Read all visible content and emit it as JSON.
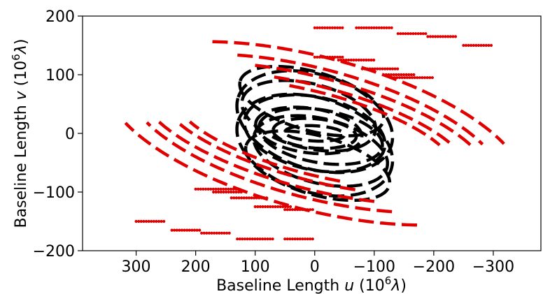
{
  "chart_data": {
    "type": "scatter",
    "title": "",
    "xlabel": {
      "prefix": "Baseline Length ",
      "var": "u",
      "unit_open": " (10",
      "exp": "6",
      "unit_sym": "λ",
      "unit_close": ")"
    },
    "ylabel": {
      "prefix": "Baseline Length ",
      "var": "v",
      "unit_open": " (10",
      "exp": "6",
      "unit_sym": "λ",
      "unit_close": ")"
    },
    "xlim": [
      390,
      -380
    ],
    "ylim": [
      -200,
      200
    ],
    "x_inverted": true,
    "x_ticks": [
      300,
      200,
      100,
      0,
      -100,
      -200,
      -300
    ],
    "x_tick_labels": [
      "300",
      "200",
      "100",
      "0",
      "−100",
      "−200",
      "−300"
    ],
    "y_ticks": [
      -200,
      -100,
      0,
      100,
      200
    ],
    "y_tick_labels": [
      "−200",
      "−100",
      "0",
      "100",
      "200"
    ],
    "grid": false,
    "legend": "none",
    "series": [
      {
        "color": "#000000",
        "style": "dashed",
        "description_tracks": "inner elliptical uv tracks",
        "tracks": [
          {
            "cx": 0,
            "cy": 0,
            "a": 50,
            "b": 13,
            "tilt": 3
          },
          {
            "cx": 0,
            "cy": 0,
            "a": 70,
            "b": 25,
            "tilt": 5
          },
          {
            "cx": 10,
            "cy": 5,
            "a": 90,
            "b": 38,
            "tilt": 8
          },
          {
            "cx": -10,
            "cy": -5,
            "a": 105,
            "b": 45,
            "tilt": 10
          },
          {
            "cx": 0,
            "cy": 0,
            "a": 120,
            "b": 62,
            "tilt": 12
          },
          {
            "cx": 10,
            "cy": 30,
            "a": 115,
            "b": 55,
            "tilt": 14
          },
          {
            "cx": -10,
            "cy": -30,
            "a": 115,
            "b": 55,
            "tilt": 14
          },
          {
            "cx": 5,
            "cy": 55,
            "a": 125,
            "b": 50,
            "tilt": 16
          },
          {
            "cx": -5,
            "cy": -55,
            "a": 125,
            "b": 50,
            "tilt": 16
          },
          {
            "cx": 0,
            "cy": 20,
            "a": 135,
            "b": 80,
            "tilt": 18
          },
          {
            "cx": 0,
            "cy": -20,
            "a": 135,
            "b": 80,
            "tilt": 18
          }
        ]
      },
      {
        "color": "#e00000",
        "style": "dashed",
        "description_tracks": "outer crescent uv tracks",
        "tracks": [
          {
            "cx": 0,
            "cy": 0,
            "a": 360,
            "b": 130,
            "t0": 55,
            "t1": 150,
            "tilt": 15
          },
          {
            "cx": 0,
            "cy": 0,
            "a": 320,
            "b": 110,
            "t0": 60,
            "t1": 150,
            "tilt": 15
          },
          {
            "cx": 0,
            "cy": 0,
            "a": 300,
            "b": 95,
            "t0": 65,
            "t1": 150,
            "tilt": 15
          },
          {
            "cx": 0,
            "cy": 0,
            "a": 265,
            "b": 80,
            "t0": 70,
            "t1": 150,
            "tilt": 15
          },
          {
            "cx": 0,
            "cy": 0,
            "a": 240,
            "b": 70,
            "t0": 75,
            "t1": 150,
            "tilt": 15
          },
          {
            "cx": 0,
            "cy": 0,
            "a": 360,
            "b": 130,
            "t0": 235,
            "t1": 330,
            "tilt": 15
          },
          {
            "cx": 0,
            "cy": 0,
            "a": 320,
            "b": 110,
            "t0": 240,
            "t1": 330,
            "tilt": 15
          },
          {
            "cx": 0,
            "cy": 0,
            "a": 300,
            "b": 95,
            "t0": 245,
            "t1": 330,
            "tilt": 15
          },
          {
            "cx": 0,
            "cy": 0,
            "a": 265,
            "b": 80,
            "t0": 250,
            "t1": 330,
            "tilt": 15
          },
          {
            "cx": 0,
            "cy": 0,
            "a": 240,
            "b": 70,
            "t0": 255,
            "t1": 330,
            "tilt": 15
          }
        ],
        "dotted_rows": [
          {
            "y": 180,
            "x_from": 0,
            "x_to": -50
          },
          {
            "y": 180,
            "x_from": -70,
            "x_to": -130
          },
          {
            "y": 170,
            "x_from": -140,
            "x_to": -190
          },
          {
            "y": 165,
            "x_from": -190,
            "x_to": -240
          },
          {
            "y": 150,
            "x_from": -250,
            "x_to": -300
          },
          {
            "y": 130,
            "x_from": 0,
            "x_to": -50
          },
          {
            "y": 125,
            "x_from": -40,
            "x_to": -100
          },
          {
            "y": 110,
            "x_from": -80,
            "x_to": -140
          },
          {
            "y": 100,
            "x_from": -120,
            "x_to": -170
          },
          {
            "y": 95,
            "x_from": -130,
            "x_to": -200
          },
          {
            "y": -180,
            "x_from": 0,
            "x_to": 50
          },
          {
            "y": -180,
            "x_from": 70,
            "x_to": 130
          },
          {
            "y": -170,
            "x_from": 140,
            "x_to": 190
          },
          {
            "y": -165,
            "x_from": 190,
            "x_to": 240
          },
          {
            "y": -150,
            "x_from": 250,
            "x_to": 300
          },
          {
            "y": -130,
            "x_from": 0,
            "x_to": 50
          },
          {
            "y": -125,
            "x_from": 40,
            "x_to": 100
          },
          {
            "y": -110,
            "x_from": 80,
            "x_to": 140
          },
          {
            "y": -100,
            "x_from": 120,
            "x_to": 170
          },
          {
            "y": -95,
            "x_from": 130,
            "x_to": 200
          }
        ]
      }
    ]
  }
}
